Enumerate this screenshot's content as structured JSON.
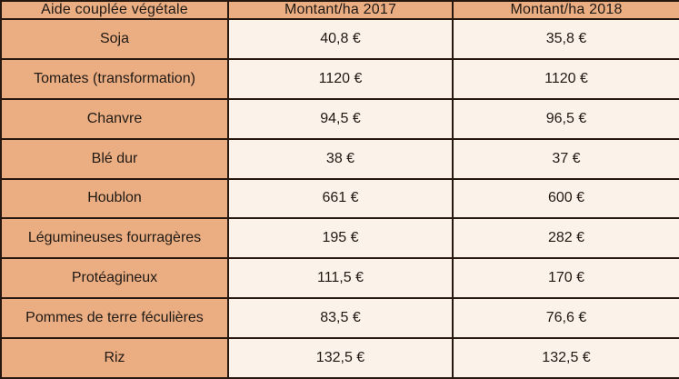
{
  "colors": {
    "header_and_label_background": "#ebad82",
    "value_background": "#fbf2e9",
    "border": "#26180f",
    "text": "#201a15"
  },
  "chart_data": {
    "type": "table",
    "title": "Aide couplée végétale — Montant/ha 2017 vs 2018",
    "categories": [
      "Soja",
      "Tomates (transformation)",
      "Chanvre",
      "Blé dur",
      "Houblon",
      "Légumineuses fourragères",
      "Protéagineux",
      "Pommes de terre féculières",
      "Riz"
    ],
    "series": [
      {
        "name": "Montant/ha 2017",
        "values": [
          40.8,
          1120,
          94.5,
          38,
          661,
          195,
          111.5,
          83.5,
          132.5
        ]
      },
      {
        "name": "Montant/ha 2018",
        "values": [
          35.8,
          1120,
          96.5,
          37,
          600,
          282,
          170,
          76.6,
          132.5
        ]
      }
    ],
    "unit": "€"
  },
  "table": {
    "headers": {
      "label": "Aide couplée végétale",
      "y2017": "Montant/ha 2017",
      "y2018": "Montant/ha 2018"
    },
    "rows": [
      {
        "label": "Soja",
        "y2017": "40,8 €",
        "y2018": "35,8 €"
      },
      {
        "label": "Tomates (transformation)",
        "y2017": "1120 €",
        "y2018": "1120 €"
      },
      {
        "label": "Chanvre",
        "y2017": "94,5 €",
        "y2018": "96,5 €"
      },
      {
        "label": "Blé dur",
        "y2017": "38 €",
        "y2018": "37 €"
      },
      {
        "label": "Houblon",
        "y2017": "661 €",
        "y2018": "600 €"
      },
      {
        "label": "Légumineuses fourragères",
        "y2017": "195 €",
        "y2018": "282 €"
      },
      {
        "label": "Protéagineux",
        "y2017": "111,5 €",
        "y2018": "170 €"
      },
      {
        "label": "Pommes de terre féculières",
        "y2017": "83,5 €",
        "y2018": "76,6 €"
      },
      {
        "label": "Riz",
        "y2017": "132,5 €",
        "y2018": "132,5 €"
      }
    ]
  }
}
